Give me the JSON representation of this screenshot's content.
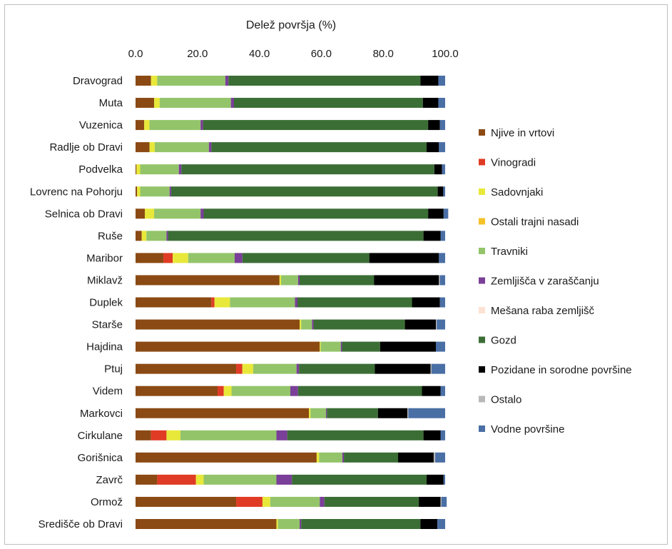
{
  "chart_data": {
    "type": "bar",
    "orientation": "horizontal",
    "stacked": true,
    "title": "Delež površja (%)",
    "xlim": [
      0,
      100
    ],
    "x_ticks": [
      "0.0",
      "20.0",
      "40.0",
      "60.0",
      "80.0",
      "100.0"
    ],
    "x_tick_values": [
      0,
      20,
      40,
      60,
      80,
      100
    ],
    "axis_position": "top",
    "grid": false,
    "legend_position": "right",
    "categories": [
      "Dravograd",
      "Muta",
      "Vuzenica",
      "Radlje ob Dravi",
      "Podvelka",
      "Lovrenc na Pohorju",
      "Selnica ob Dravi",
      "Ruše",
      "Maribor",
      "Miklavž",
      "Duplek",
      "Starše",
      "Hajdina",
      "Ptuj",
      "Videm",
      "Markovci",
      "Cirkulane",
      "Gorišnica",
      "Zavrč",
      "Ormož",
      "Središče ob Dravi"
    ],
    "series": [
      {
        "name": "Njive in vrtovi",
        "color": "#8B4A14",
        "values": [
          5.0,
          6.0,
          2.8,
          4.5,
          0.3,
          0.5,
          3.0,
          2.0,
          9.0,
          46.5,
          24.5,
          53.0,
          59.5,
          32.5,
          26.5,
          56.0,
          5.0,
          58.5,
          7.0,
          32.5,
          45.5
        ]
      },
      {
        "name": "Vinogradi",
        "color": "#E03B24",
        "values": [
          0.0,
          0.0,
          0.0,
          0.0,
          0.0,
          0.0,
          0.0,
          0.0,
          3.0,
          0.0,
          1.0,
          0.0,
          0.0,
          2.0,
          2.0,
          0.0,
          5.0,
          0.0,
          12.5,
          8.5,
          0.0
        ]
      },
      {
        "name": "Sadovnjaki",
        "color": "#E8E83A",
        "values": [
          2.0,
          1.8,
          1.7,
          1.7,
          1.2,
          1.0,
          3.0,
          1.5,
          5.0,
          0.5,
          5.0,
          0.5,
          0.3,
          3.5,
          2.5,
          0.5,
          4.5,
          0.8,
          2.5,
          2.5,
          0.5
        ]
      },
      {
        "name": "Ostali trajni nasadi",
        "color": "#F5C227",
        "values": [
          0.0,
          0.0,
          0.0,
          0.0,
          0.0,
          0.0,
          0.0,
          0.0,
          0.0,
          0.0,
          0.0,
          0.0,
          0.0,
          0.0,
          0.0,
          0.0,
          0.0,
          0.0,
          0.0,
          0.0,
          0.0
        ]
      },
      {
        "name": "Travniki",
        "color": "#93C46A",
        "values": [
          22.0,
          23.0,
          16.5,
          17.5,
          12.5,
          9.5,
          15.0,
          6.5,
          15.0,
          5.5,
          21.0,
          3.5,
          6.5,
          14.0,
          19.0,
          5.0,
          31.0,
          7.5,
          23.5,
          16.0,
          7.0
        ]
      },
      {
        "name": "Zemljišča v zaraščanju",
        "color": "#7A3F98",
        "values": [
          1.0,
          1.0,
          0.8,
          0.8,
          0.8,
          0.5,
          1.0,
          0.5,
          2.5,
          0.5,
          0.8,
          0.5,
          0.4,
          0.8,
          2.5,
          0.3,
          3.5,
          0.5,
          5.0,
          1.5,
          0.5
        ]
      },
      {
        "name": "Mešana raba zemljišč",
        "color": "#FCE2D2",
        "values": [
          0.0,
          0.0,
          0.0,
          0.0,
          0.0,
          0.0,
          0.0,
          0.0,
          0.0,
          0.0,
          0.0,
          0.0,
          0.0,
          0.0,
          0.0,
          0.0,
          0.0,
          0.0,
          0.0,
          0.0,
          0.0
        ]
      },
      {
        "name": "Gozd",
        "color": "#3B6E35",
        "values": [
          62.0,
          61.0,
          72.7,
          69.5,
          81.7,
          86.1,
          72.5,
          82.5,
          41.0,
          24.0,
          37.0,
          29.5,
          12.3,
          24.5,
          40.0,
          16.5,
          44.0,
          17.5,
          43.5,
          30.5,
          38.5
        ]
      },
      {
        "name": "Pozidane in sorodne površine",
        "color": "#000000",
        "values": [
          5.8,
          5.0,
          3.8,
          4.0,
          2.5,
          1.8,
          5.0,
          5.5,
          22.5,
          21.0,
          9.0,
          10.0,
          18.0,
          18.0,
          6.0,
          9.5,
          5.5,
          11.5,
          5.5,
          7.0,
          5.5
        ]
      },
      {
        "name": "Ostalo",
        "color": "#B8B8B8",
        "values": [
          0.0,
          0.0,
          0.0,
          0.0,
          0.0,
          0.0,
          0.0,
          0.0,
          0.0,
          0.3,
          0.0,
          0.3,
          0.0,
          0.3,
          0.0,
          0.3,
          0.0,
          0.5,
          0.0,
          0.3,
          0.0
        ]
      },
      {
        "name": "Vodne površine",
        "color": "#4A6FA5",
        "values": [
          2.2,
          2.2,
          1.7,
          2.0,
          1.0,
          0.6,
          1.5,
          1.5,
          2.0,
          1.7,
          1.7,
          2.7,
          3.0,
          4.4,
          1.5,
          11.9,
          1.5,
          3.2,
          0.5,
          1.7,
          2.5
        ]
      }
    ]
  }
}
